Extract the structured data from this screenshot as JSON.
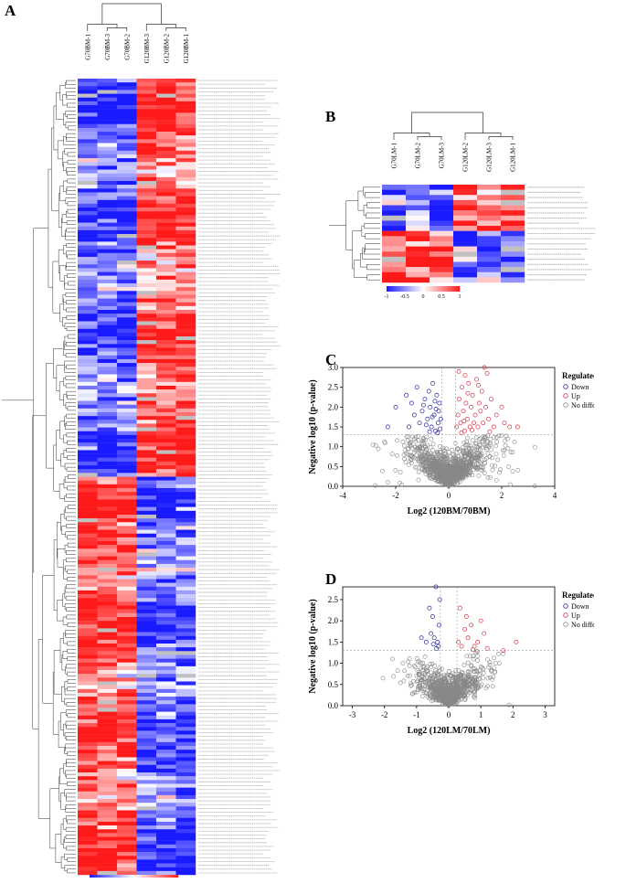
{
  "panels": {
    "a": "A",
    "b": "B",
    "c": "C",
    "d": "D"
  },
  "colors": {
    "low": "#1a1aff",
    "mid": "#ffffff",
    "high": "#ff1a1a",
    "missing": "#c0c0c0",
    "down": "#2a2aa0",
    "up": "#d43a4a",
    "nodiff": "#888888"
  },
  "chart_data": [
    {
      "id": "A",
      "type": "heatmap",
      "columns": [
        "G70BM-1",
        "G70BM-3",
        "G70BM-2",
        "G120BM-3",
        "G120BM-2",
        "G120BM-1"
      ],
      "row_count": 210,
      "color_scale": {
        "ticks": [
          "-1",
          "-0.5",
          "0",
          "0.5",
          "1"
        ],
        "range": [
          -1,
          1
        ]
      }
    },
    {
      "id": "B",
      "type": "heatmap",
      "columns": [
        "G70LM-1",
        "G70LM-2",
        "G70LM-3",
        "G120LM-2",
        "G120LM-3",
        "G120LM-1"
      ],
      "row_count": 19,
      "color_scale": {
        "ticks": [
          "-1",
          "-0.5",
          "0",
          "0.5",
          "1"
        ],
        "range": [
          -1,
          1
        ]
      }
    },
    {
      "id": "C",
      "type": "scatter",
      "xlabel": "Log2 (120BM/70BM)",
      "ylabel": "Negative log10 (p-value)",
      "xlim": [
        -4,
        4
      ],
      "ylim": [
        0,
        3
      ],
      "xticks": [
        "-4",
        "-2",
        "0",
        "2",
        "4"
      ],
      "yticks": [
        "0.0",
        "0.5",
        "1.0",
        "1.5",
        "2.0",
        "2.5",
        "3.0"
      ],
      "threshold_y": 1.3,
      "threshold_x": [
        -0.26,
        0.26
      ],
      "legend": {
        "title": "Regulated.Type",
        "items": [
          "Down",
          "Up",
          "No different"
        ]
      },
      "series": [
        {
          "name": "Down",
          "points": [
            [
              -2.0,
              2.0
            ],
            [
              -1.6,
              2.3
            ],
            [
              -1.4,
              2.1
            ],
            [
              -1.2,
              2.5
            ],
            [
              -1.0,
              1.9
            ],
            [
              -0.9,
              2.2
            ],
            [
              -0.8,
              1.7
            ],
            [
              -0.7,
              2.0
            ],
            [
              -0.65,
              1.5
            ],
            [
              -0.6,
              2.6
            ],
            [
              -0.55,
              1.8
            ],
            [
              -0.5,
              1.4
            ],
            [
              -0.45,
              2.3
            ],
            [
              -0.4,
              1.6
            ],
            [
              -0.38,
              1.9
            ],
            [
              -0.35,
              2.1
            ],
            [
              -0.33,
              1.45
            ],
            [
              -0.3,
              1.7
            ],
            [
              -1.1,
              1.6
            ],
            [
              -1.3,
              1.8
            ],
            [
              -0.75,
              2.4
            ],
            [
              -0.85,
              1.55
            ],
            [
              -0.95,
              2.05
            ],
            [
              -0.52,
              2.15
            ],
            [
              -0.42,
              1.35
            ],
            [
              -1.5,
              1.5
            ],
            [
              -0.62,
              1.75
            ],
            [
              -0.72,
              1.38
            ],
            [
              -2.3,
              1.5
            ],
            [
              -0.48,
              1.95
            ]
          ]
        },
        {
          "name": "Up",
          "points": [
            [
              0.3,
              1.5
            ],
            [
              0.35,
              1.8
            ],
            [
              0.4,
              2.2
            ],
            [
              0.45,
              1.6
            ],
            [
              0.5,
              2.5
            ],
            [
              0.55,
              1.9
            ],
            [
              0.6,
              1.4
            ],
            [
              0.65,
              2.1
            ],
            [
              0.7,
              1.7
            ],
            [
              0.75,
              2.6
            ],
            [
              0.8,
              1.5
            ],
            [
              0.85,
              2.0
            ],
            [
              0.9,
              2.3
            ],
            [
              0.95,
              1.6
            ],
            [
              1.0,
              1.8
            ],
            [
              1.05,
              2.7
            ],
            [
              1.1,
              1.5
            ],
            [
              1.15,
              2.1
            ],
            [
              1.2,
              1.9
            ],
            [
              1.25,
              2.4
            ],
            [
              1.3,
              1.6
            ],
            [
              1.4,
              2.0
            ],
            [
              1.5,
              1.7
            ],
            [
              1.6,
              2.2
            ],
            [
              1.7,
              1.5
            ],
            [
              1.8,
              1.8
            ],
            [
              2.0,
              2.0
            ],
            [
              2.1,
              1.6
            ],
            [
              2.3,
              1.5
            ],
            [
              2.6,
              1.5
            ],
            [
              0.38,
              2.9
            ],
            [
              0.62,
              2.8
            ],
            [
              1.35,
              3.0
            ],
            [
              0.48,
              1.35
            ],
            [
              0.88,
              1.42
            ],
            [
              1.12,
              2.55
            ],
            [
              1.45,
              2.85
            ],
            [
              0.72,
              2.35
            ],
            [
              1.55,
              1.38
            ],
            [
              0.58,
              1.65
            ]
          ]
        }
      ]
    },
    {
      "id": "D",
      "type": "scatter",
      "xlabel": "Log2 (120LM/70LM)",
      "ylabel": "Negative log10 (p-value)",
      "xlim": [
        -3.3,
        3.3
      ],
      "ylim": [
        0,
        2.8
      ],
      "xticks": [
        "-3",
        "-2",
        "-1",
        "0",
        "1",
        "2",
        "3"
      ],
      "yticks": [
        "0.0",
        "0.5",
        "1.0",
        "1.5",
        "2.0",
        "2.5"
      ],
      "threshold_y": 1.3,
      "threshold_x": [
        -0.26,
        0.26
      ],
      "legend": {
        "title": "Regulated.Type",
        "items": [
          "Down",
          "Up",
          "No different"
        ]
      },
      "series": [
        {
          "name": "Down",
          "points": [
            [
              -0.6,
              2.3
            ],
            [
              -0.5,
              2.1
            ],
            [
              -0.45,
              1.6
            ],
            [
              -0.4,
              2.8
            ],
            [
              -0.35,
              1.5
            ],
            [
              -0.32,
              1.4
            ],
            [
              -0.55,
              1.7
            ],
            [
              -0.7,
              1.5
            ],
            [
              -0.3,
              1.9
            ],
            [
              -0.38,
              1.35
            ],
            [
              -0.48,
              1.45
            ],
            [
              -0.85,
              1.6
            ],
            [
              -0.28,
              2.5
            ]
          ]
        },
        {
          "name": "Up",
          "points": [
            [
              0.3,
              1.5
            ],
            [
              0.4,
              1.4
            ],
            [
              0.5,
              1.8
            ],
            [
              0.6,
              1.6
            ],
            [
              0.7,
              1.9
            ],
            [
              0.8,
              1.4
            ],
            [
              0.9,
              1.5
            ],
            [
              1.0,
              2.0
            ],
            [
              1.1,
              1.7
            ],
            [
              1.2,
              1.35
            ],
            [
              1.7,
              1.3
            ],
            [
              2.1,
              1.5
            ],
            [
              0.55,
              2.1
            ],
            [
              0.35,
              2.3
            ],
            [
              0.75,
              1.32
            ]
          ]
        }
      ]
    }
  ]
}
